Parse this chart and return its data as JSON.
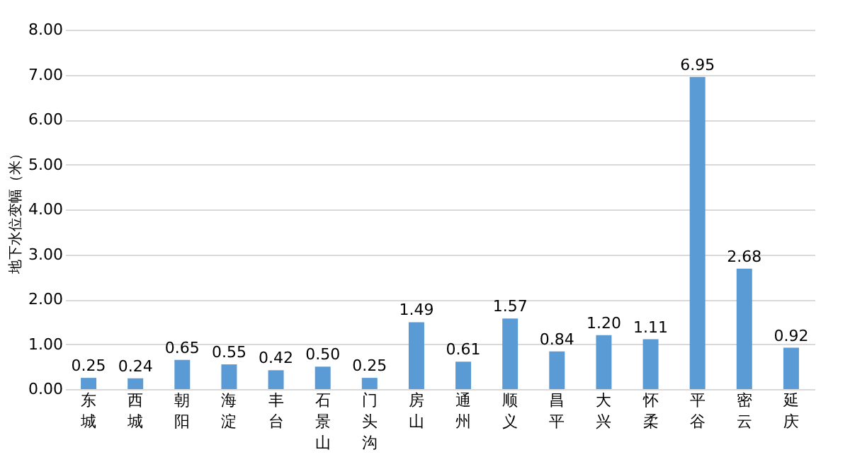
{
  "chart_data": {
    "type": "bar",
    "ylabel": "地下水位变幅（米）",
    "categories": [
      "东城",
      "西城",
      "朝阳",
      "海淀",
      "丰台",
      "石景山",
      "门头沟",
      "房山",
      "通州",
      "顺义",
      "昌平",
      "大兴",
      "怀柔",
      "平谷",
      "密云",
      "延庆"
    ],
    "values": [
      0.25,
      0.24,
      0.65,
      0.55,
      0.42,
      0.5,
      0.25,
      1.49,
      0.61,
      1.57,
      0.84,
      1.2,
      1.11,
      6.95,
      2.68,
      0.92
    ],
    "value_labels": [
      "0.25",
      "0.24",
      "0.65",
      "0.55",
      "0.42",
      "0.50",
      "0.25",
      "1.49",
      "0.61",
      "1.57",
      "0.84",
      "1.20",
      "1.11",
      "6.95",
      "2.68",
      "0.92"
    ],
    "color": "#5b9bd5",
    "ylim": [
      0,
      8
    ],
    "yticks": [
      {
        "value": 0,
        "label": "0.00"
      },
      {
        "value": 1,
        "label": "1.00"
      },
      {
        "value": 2,
        "label": "2.00"
      },
      {
        "value": 3,
        "label": "3.00"
      },
      {
        "value": 4,
        "label": "4.00"
      },
      {
        "value": 5,
        "label": "5.00"
      },
      {
        "value": 6,
        "label": "6.00"
      },
      {
        "value": 7,
        "label": "7.00"
      },
      {
        "value": 8,
        "label": "8.00"
      }
    ],
    "grid": "y"
  }
}
